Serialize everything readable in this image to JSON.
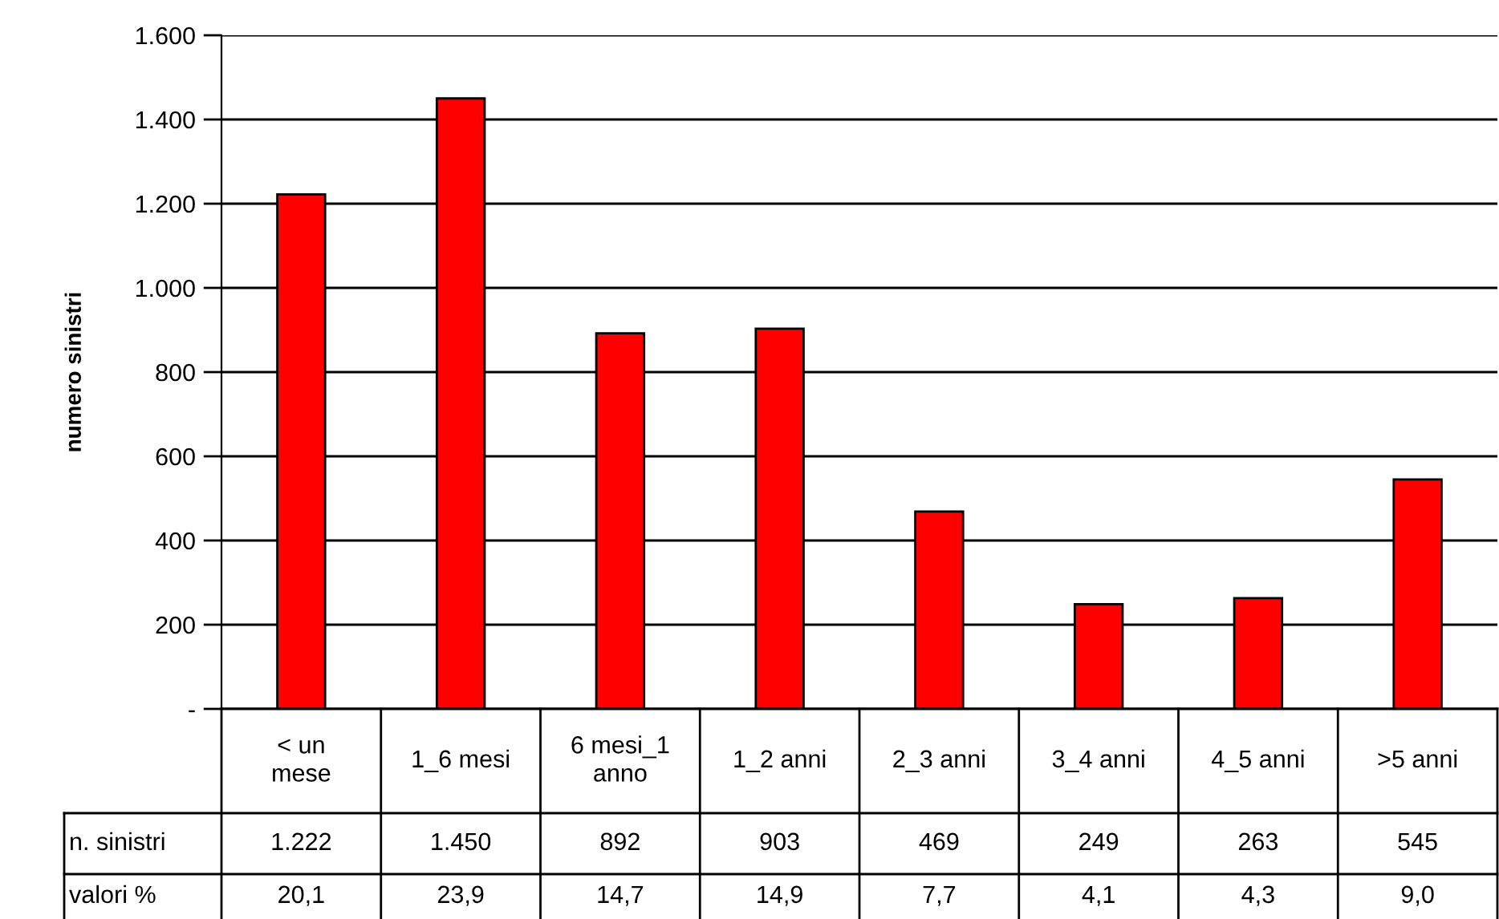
{
  "chart_data": {
    "type": "bar",
    "ylabel": "numero sinistri",
    "categories": [
      "< un\nmese",
      "1_6 mesi",
      "6 mesi_1\nanno",
      "1_2 anni",
      "2_3 anni",
      "3_4 anni",
      "4_5 anni",
      ">5 anni"
    ],
    "series": [
      {
        "name": "n. sinistri",
        "color": "#ff0000",
        "values": [
          1222,
          1450,
          892,
          903,
          469,
          249,
          263,
          545
        ],
        "value_labels": [
          "1.222",
          "1.450",
          "892",
          "903",
          "469",
          "249",
          "263",
          "545"
        ]
      }
    ],
    "ylim": [
      0,
      1600
    ],
    "yticks": [
      {
        "value": 0,
        "label": "-"
      },
      {
        "value": 200,
        "label": "200"
      },
      {
        "value": 400,
        "label": "400"
      },
      {
        "value": 600,
        "label": "600"
      },
      {
        "value": 800,
        "label": "800"
      },
      {
        "value": 1000,
        "label": "1.000"
      },
      {
        "value": 1200,
        "label": "1.200"
      },
      {
        "value": 1400,
        "label": "1.400"
      },
      {
        "value": 1600,
        "label": "1.600"
      }
    ],
    "grid": "y",
    "annotations": [
      "valori %",
      "20,1",
      "23,9",
      "14,7",
      "14,9",
      "7,7",
      "4,1",
      "4,3",
      "9,0"
    ]
  }
}
